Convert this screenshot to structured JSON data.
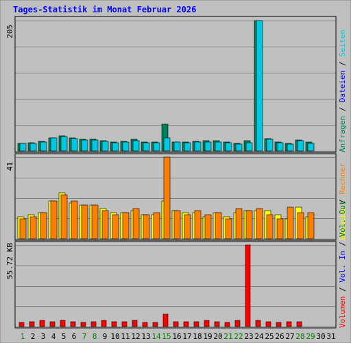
{
  "title": "Tages-Statistik im Monat Februar 2026",
  "colors": {
    "background": "#c0c0c0",
    "frame": "#808080",
    "title_text": "#0000ff",
    "grid": "#808080",
    "hits": "#00805c",
    "files": "#0000ff",
    "pages": "#00c8e0",
    "visits": "#ffff00",
    "sites": "#ff8000",
    "kbytes": "#ff0000",
    "in_text": "#0000ff",
    "out_text": "#008000",
    "weekend": "#008000",
    "weekday": "#000000"
  },
  "chart_data": [
    {
      "type": "bar",
      "name": "top",
      "y_max_label": "205",
      "ylim": [
        0,
        205
      ],
      "series_labels": [
        "Anfragen",
        "Dateien",
        "Seiten"
      ],
      "series": [
        {
          "name": "Anfragen",
          "color_key": "hits",
          "values": [
            12,
            13,
            15,
            20,
            24,
            20,
            18,
            18,
            16,
            14,
            15,
            18,
            14,
            14,
            42,
            14,
            14,
            15,
            16,
            16,
            14,
            12,
            16,
            205,
            19,
            14,
            12,
            17,
            14,
            null,
            null
          ]
        },
        {
          "name": "Seiten",
          "color_key": "pages",
          "values": [
            12,
            12,
            14,
            20,
            23,
            19,
            17,
            17,
            15,
            13,
            14,
            16,
            13,
            13,
            20,
            14,
            13,
            14,
            14,
            14,
            13,
            11,
            13,
            205,
            18,
            13,
            11,
            16,
            12,
            null,
            null
          ]
        }
      ]
    },
    {
      "type": "bar",
      "name": "middle",
      "y_max_label": "41",
      "ylim": [
        0,
        41
      ],
      "series_labels": [
        "Besuche",
        "Rechner"
      ],
      "series": [
        {
          "name": "Besuche",
          "color_key": "visits",
          "values": [
            11,
            12,
            13,
            19,
            23,
            18,
            17,
            17,
            15,
            13,
            13,
            14,
            12,
            12,
            19,
            14,
            13,
            13,
            11,
            13,
            11,
            13,
            14,
            14,
            14,
            12,
            10,
            16,
            11,
            null,
            null
          ]
        },
        {
          "name": "Rechner",
          "color_key": "sites",
          "values": [
            10,
            11,
            13,
            19,
            22,
            19,
            17,
            17,
            14,
            12,
            13,
            15,
            12,
            13,
            41,
            14,
            12,
            14,
            12,
            13,
            10,
            15,
            14,
            15,
            12,
            10,
            16,
            13,
            13,
            null,
            null
          ]
        }
      ]
    },
    {
      "type": "bar",
      "name": "bottom",
      "y_max_label": "55.72 KB",
      "ylim": [
        0,
        55.72
      ],
      "series_labels": [
        "Volumen",
        "Vol. In",
        "Vol. Out"
      ],
      "series": [
        {
          "name": "Volumen",
          "color_key": "kbytes",
          "values": [
            3,
            3.5,
            4,
            3.5,
            4,
            3.5,
            3,
            3.5,
            4,
            3.5,
            3.5,
            4,
            3,
            3,
            8.5,
            3.5,
            3.5,
            3.5,
            4,
            3.5,
            3,
            4,
            55.72,
            4,
            3.5,
            3,
            3.5,
            3.5,
            null,
            null,
            null
          ]
        }
      ]
    }
  ],
  "x_labels": [
    "1",
    "2",
    "3",
    "4",
    "5",
    "6",
    "7",
    "8",
    "9",
    "10",
    "11",
    "12",
    "13",
    "14",
    "15",
    "16",
    "17",
    "18",
    "19",
    "20",
    "21",
    "22",
    "23",
    "24",
    "25",
    "26",
    "27",
    "28",
    "29",
    "30",
    "31"
  ],
  "weekend_days": [
    1,
    7,
    8,
    14,
    15,
    21,
    22,
    28,
    29
  ]
}
